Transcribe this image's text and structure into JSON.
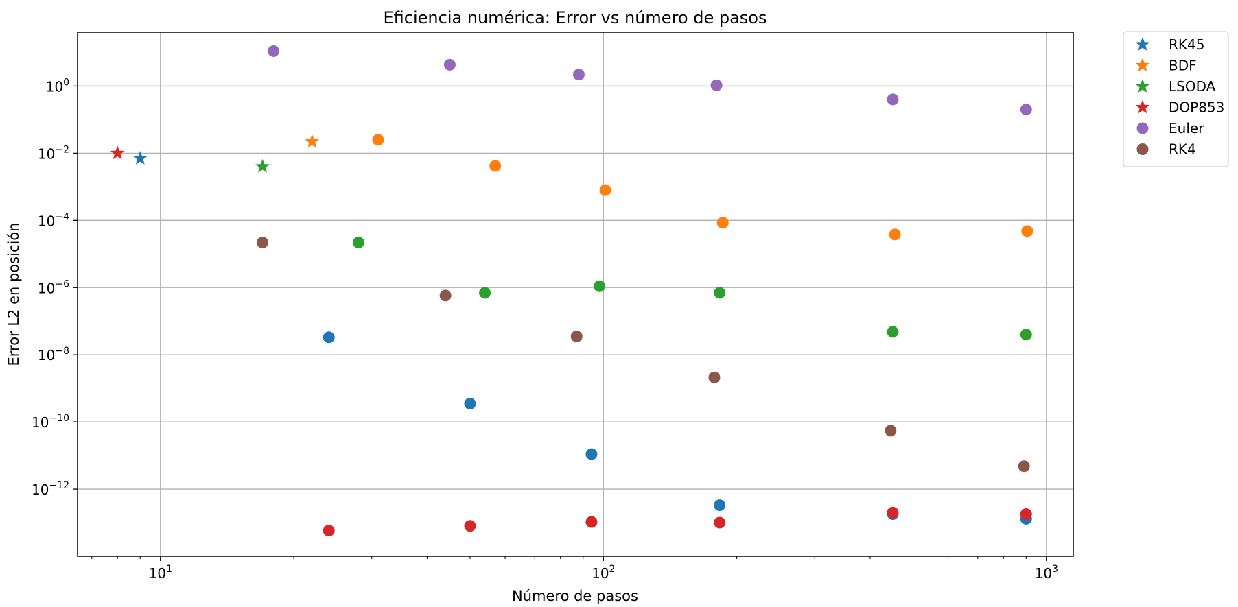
{
  "chart_data": {
    "type": "scatter",
    "title": "Eficiencia numérica: Error vs número de pasos",
    "xlabel": "Número de pasos",
    "ylabel": "Error L2 en posición",
    "x_scale": "log",
    "y_scale": "log",
    "xlim": [
      6.5,
      1150
    ],
    "ylim": [
      1e-14,
      40.0
    ],
    "grid": true,
    "legend_position": "outside-top-right",
    "x_ticks": [
      {
        "value": 10,
        "base": "10",
        "exp": "1"
      },
      {
        "value": 100,
        "base": "10",
        "exp": "2"
      },
      {
        "value": 1000,
        "base": "10",
        "exp": "3"
      }
    ],
    "y_ticks": [
      {
        "value": 1,
        "base": "10",
        "exp": "0"
      },
      {
        "value": 0.01,
        "base": "10",
        "exp": "−2"
      },
      {
        "value": 0.0001,
        "base": "10",
        "exp": "−4"
      },
      {
        "value": 1e-06,
        "base": "10",
        "exp": "−6"
      },
      {
        "value": 1e-08,
        "base": "10",
        "exp": "−8"
      },
      {
        "value": 1e-10,
        "base": "10",
        "exp": "−10"
      },
      {
        "value": 1e-12,
        "base": "10",
        "exp": "−12"
      }
    ],
    "series": [
      {
        "name": "RK45",
        "marker": "star",
        "color": "#1f77b4",
        "x": [
          9
        ],
        "y": [
          0.007
        ]
      },
      {
        "name": "BDF",
        "marker": "star",
        "color": "#ff7f0e",
        "x": [
          22
        ],
        "y": [
          0.022
        ]
      },
      {
        "name": "LSODA",
        "marker": "star",
        "color": "#2ca02c",
        "x": [
          17
        ],
        "y": [
          0.004
        ]
      },
      {
        "name": "DOP853",
        "marker": "star",
        "color": "#d62728",
        "x": [
          8
        ],
        "y": [
          0.01
        ]
      },
      {
        "name": "Euler",
        "marker": "circle",
        "color": "#9467bd",
        "x": [
          18,
          45,
          88,
          180,
          450,
          900
        ],
        "y": [
          11,
          4.3,
          2.2,
          1.05,
          0.4,
          0.2
        ]
      },
      {
        "name": "RK4",
        "marker": "circle",
        "color": "#8c564b",
        "x": [
          17,
          44,
          87,
          178,
          445,
          890
        ],
        "y": [
          2.2e-05,
          5.8e-07,
          3.5e-08,
          2.1e-09,
          5.5e-11,
          4.8e-12
        ]
      },
      {
        "name": "",
        "marker": "circle",
        "color": "#1f77b4",
        "x": [
          24,
          50,
          94,
          183,
          450,
          900
        ],
        "y": [
          3.3e-08,
          3.5e-10,
          1.1e-11,
          3.3e-13,
          1.8e-13,
          1.3e-13
        ]
      },
      {
        "name": "",
        "marker": "circle",
        "color": "#ff7f0e",
        "x": [
          31,
          57,
          101,
          186,
          455,
          905
        ],
        "y": [
          0.025,
          0.0042,
          0.0008,
          8.5e-05,
          3.8e-05,
          4.8e-05
        ]
      },
      {
        "name": "",
        "marker": "circle",
        "color": "#2ca02c",
        "x": [
          28,
          54,
          98,
          183,
          450,
          900
        ],
        "y": [
          2.2e-05,
          7e-07,
          1.1e-06,
          7e-07,
          4.8e-08,
          4e-08
        ]
      },
      {
        "name": "",
        "marker": "circle",
        "color": "#d62728",
        "x": [
          24,
          50,
          94,
          183,
          450,
          900
        ],
        "y": [
          5.8e-14,
          8e-14,
          1.05e-13,
          1e-13,
          2e-13,
          1.8e-13
        ]
      }
    ]
  }
}
